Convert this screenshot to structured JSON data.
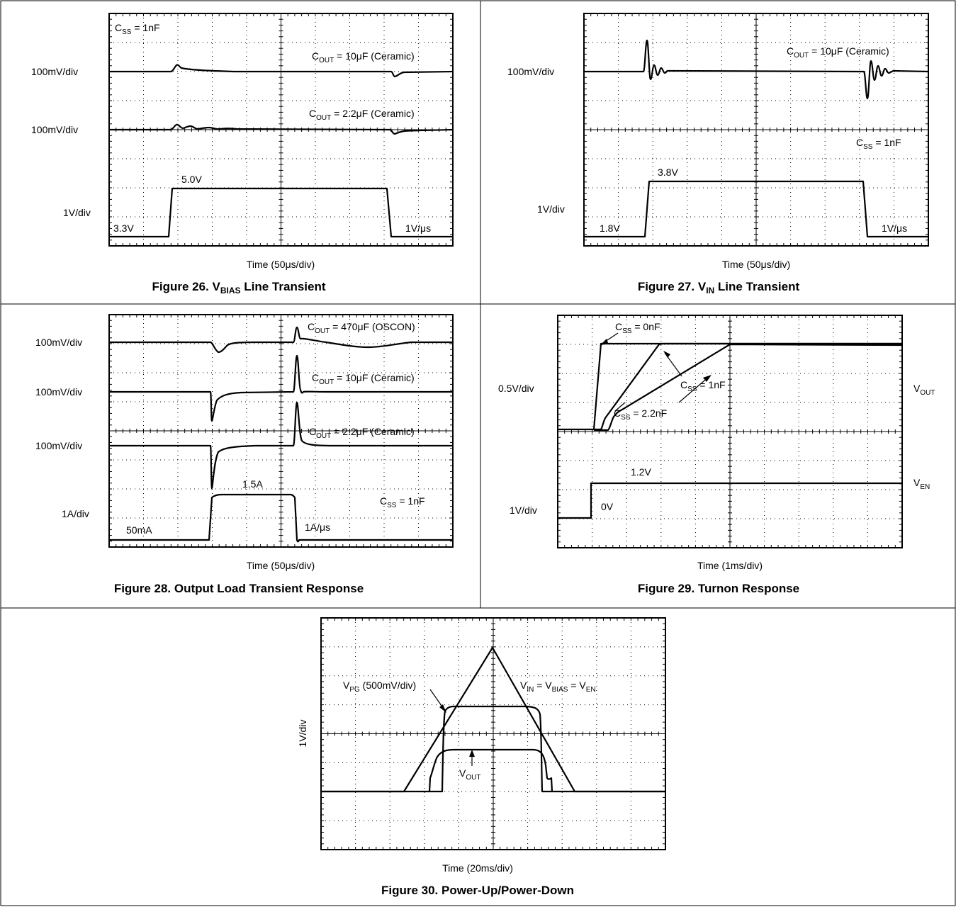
{
  "chart_data": [
    {
      "type": "line",
      "figure_caption": {
        "prefix": "Figure 26. V",
        "sub": "BIAS",
        "suffix": " Line Transient"
      },
      "xlabel": "Time (50μs/div)",
      "channel_labels": [
        "100mV/div",
        "100mV/div",
        "1V/div"
      ],
      "annotations": {
        "css": {
          "main": "C",
          "sub": "SS",
          "rest": " = 1nF"
        },
        "cout1": {
          "main": "C",
          "sub": "OUT",
          "rest": " = 10μF (Ceramic)"
        },
        "cout2": {
          "main": "C",
          "sub": "OUT",
          "rest": " = 2.2μF (Ceramic)"
        },
        "v_low": "3.3V",
        "v_high": "5.0V",
        "slew": "1V/μs"
      },
      "series": [
        {
          "values_description": "VBIAS step",
          "low": 3.3,
          "high": 5.0,
          "units": "V"
        }
      ]
    },
    {
      "type": "line",
      "figure_caption": {
        "prefix": "Figure 27. V",
        "sub": "IN",
        "suffix": " Line Transient"
      },
      "xlabel": "Time (50μs/div)",
      "channel_labels": [
        "100mV/div",
        "1V/div"
      ],
      "annotations": {
        "cout1": {
          "main": "C",
          "sub": "OUT",
          "rest": " = 10μF (Ceramic)"
        },
        "css": {
          "main": "C",
          "sub": "SS",
          "rest": " = 1nF"
        },
        "v_low": "1.8V",
        "v_high": "3.8V",
        "slew": "1V/μs"
      },
      "series": [
        {
          "values_description": "VIN step",
          "low": 1.8,
          "high": 3.8,
          "units": "V"
        }
      ]
    },
    {
      "type": "line",
      "figure_caption": {
        "prefix": "Figure 28. Output Load Transient Response",
        "sub": "",
        "suffix": ""
      },
      "xlabel": "Time (50μs/div)",
      "channel_labels": [
        "100mV/div",
        "100mV/div",
        "100mV/div",
        "1A/div"
      ],
      "annotations": {
        "cout1": {
          "main": "C",
          "sub": "OUT",
          "rest": " = 470μF (OSCON)"
        },
        "cout2": {
          "main": "C",
          "sub": "OUT",
          "rest": " = 10μF (Ceramic)"
        },
        "cout3": {
          "main": "C",
          "sub": "OUT",
          "rest": " = 2.2μF (Ceramic)"
        },
        "css": {
          "main": "C",
          "sub": "SS",
          "rest": " = 1nF"
        },
        "i_low": "50mA",
        "i_high": "1.5A",
        "slew": "1A/μs"
      },
      "series": [
        {
          "values_description": "load current step",
          "low": 0.05,
          "high": 1.5,
          "units": "A"
        }
      ]
    },
    {
      "type": "line",
      "figure_caption": {
        "prefix": "Figure 29. Turnon Response",
        "sub": "",
        "suffix": ""
      },
      "xlabel": "Time (1ms/div)",
      "channel_labels": [
        "0.5V/div",
        "1V/div"
      ],
      "annotations": {
        "css0": {
          "main": "C",
          "sub": "SS",
          "rest": " = 0nF"
        },
        "css1": {
          "main": "C",
          "sub": "SS",
          "rest": " = 1nF"
        },
        "css2": {
          "main": "C",
          "sub": "SS",
          "rest": " = 2.2nF"
        },
        "vout": {
          "main": "V",
          "sub": "OUT",
          "rest": ""
        },
        "ven": {
          "main": "V",
          "sub": "EN",
          "rest": ""
        },
        "v_high": "1.2V",
        "v_low": "0V"
      },
      "series": [
        {
          "values_description": "VEN step",
          "low": 0,
          "high": 1.2,
          "units": "V"
        }
      ]
    },
    {
      "type": "line",
      "figure_caption": {
        "prefix": "Figure 30. Power-Up/Power-Down",
        "sub": "",
        "suffix": ""
      },
      "xlabel": "Time (20ms/div)",
      "ylabel": "1V/div",
      "annotations": {
        "vpg": {
          "main": "V",
          "sub": "PG",
          "rest": " (500mV/div)"
        },
        "vin": {
          "main": "V",
          "sub1": "IN",
          "mid1": " = V",
          "sub2": "BIAS",
          "mid2": " = V",
          "sub3": "EN"
        },
        "vout": {
          "main": "V",
          "sub": "OUT",
          "rest": ""
        }
      }
    }
  ]
}
